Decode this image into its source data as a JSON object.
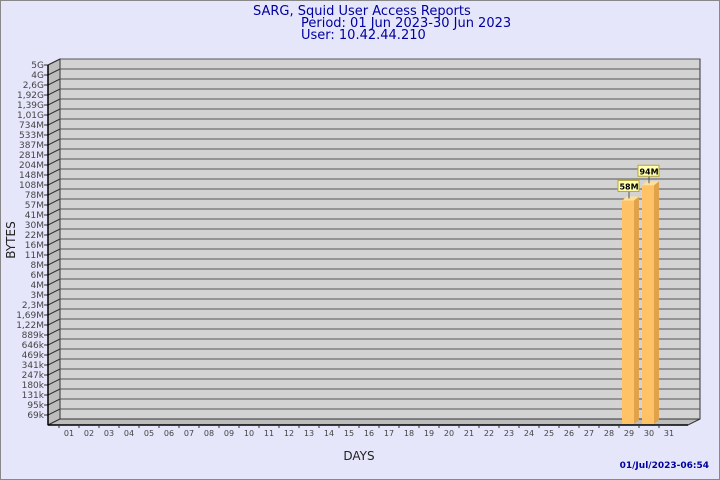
{
  "title": "SARG, Squid User Access Reports",
  "period": "Period: 01 Jun 2023-30 Jun 2023",
  "user": "User: 10.42.44.210",
  "footer_timestamp": "01/Jul/2023-06:54",
  "colors": {
    "background": "#e6e6fa",
    "wall": "#d3d3d3",
    "bar": "#ffc266",
    "title": "#0000a0"
  },
  "chart_data": {
    "type": "bar",
    "xlabel": "DAYS",
    "ylabel": "BYTES",
    "y_scale": "log",
    "grid": true,
    "y_ticks": [
      "5G",
      "4G",
      "2,6G",
      "1,92G",
      "1,39G",
      "1,01G",
      "734M",
      "533M",
      "387M",
      "281M",
      "204M",
      "148M",
      "108M",
      "78M",
      "57M",
      "41M",
      "30M",
      "22M",
      "16M",
      "11M",
      "8M",
      "6M",
      "4M",
      "3M",
      "2,3M",
      "1,69M",
      "1,22M",
      "889k",
      "646k",
      "469k",
      "341k",
      "247k",
      "180k",
      "131k",
      "95k",
      "69k"
    ],
    "categories": [
      "01",
      "02",
      "03",
      "04",
      "05",
      "06",
      "07",
      "08",
      "09",
      "10",
      "11",
      "12",
      "13",
      "14",
      "15",
      "16",
      "17",
      "18",
      "19",
      "20",
      "21",
      "22",
      "23",
      "24",
      "25",
      "26",
      "27",
      "28",
      "29",
      "30",
      "31"
    ],
    "bars": [
      {
        "day": "29",
        "value_mb": 58,
        "label": "58M"
      },
      {
        "day": "30",
        "value_mb": 94,
        "label": "94M"
      }
    ]
  }
}
